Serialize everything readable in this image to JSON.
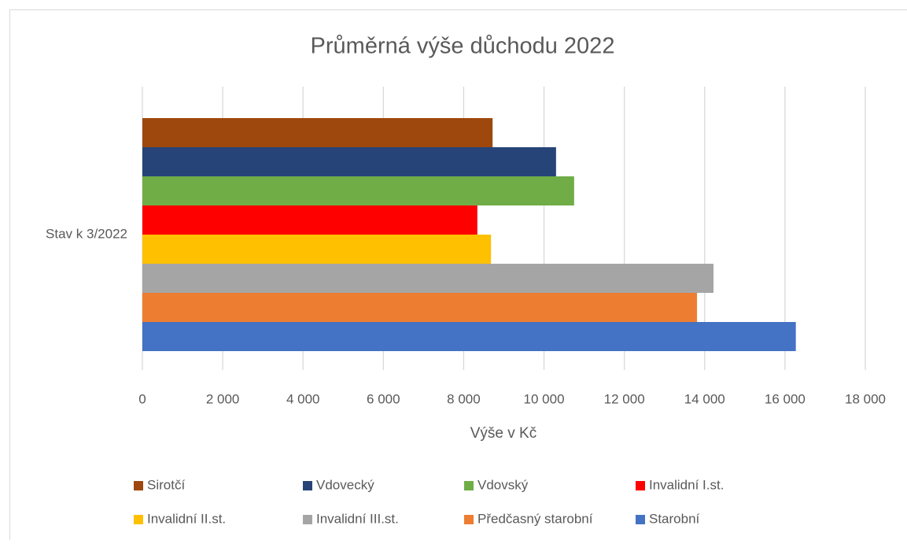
{
  "chart_data": {
    "type": "bar",
    "orientation": "horizontal",
    "title": "Průměrná výše důchodu 2022",
    "x_axis_label": "Výše v Kč",
    "categories": [
      "Stav k 3/2022"
    ],
    "series": [
      {
        "name": "Sirotčí",
        "color": "#9e480e",
        "values": [
          8720
        ]
      },
      {
        "name": "Vdovecký",
        "color": "#264478",
        "values": [
          10300
        ]
      },
      {
        "name": "Vdovský",
        "color": "#70ad47",
        "values": [
          10750
        ]
      },
      {
        "name": "Invalidní I.st.",
        "color": "#ff0000",
        "values": [
          8340
        ]
      },
      {
        "name": "Invalidní II.st.",
        "color": "#ffc000",
        "values": [
          8680
        ]
      },
      {
        "name": "Invalidní III.st.",
        "color": "#a5a5a5",
        "values": [
          14220
        ]
      },
      {
        "name": "Předčasný starobní",
        "color": "#ed7d31",
        "values": [
          13810
        ]
      },
      {
        "name": "Starobní",
        "color": "#4472c4",
        "values": [
          16270
        ]
      }
    ],
    "xlim": [
      0,
      18000
    ],
    "xticks": [
      0,
      {
        "value": 2000,
        "label": "2 000"
      },
      {
        "value": 4000,
        "label": "4 000"
      },
      {
        "value": 6000,
        "label": "6 000"
      },
      {
        "value": 8000,
        "label": "8 000"
      },
      {
        "value": 10000,
        "label": "10 000"
      },
      {
        "value": 12000,
        "label": "12 000"
      },
      {
        "value": 14000,
        "label": "14 000"
      },
      {
        "value": 16000,
        "label": "16 000"
      },
      {
        "value": 18000,
        "label": "18 000"
      }
    ],
    "grid": true,
    "legend": "bottom"
  }
}
